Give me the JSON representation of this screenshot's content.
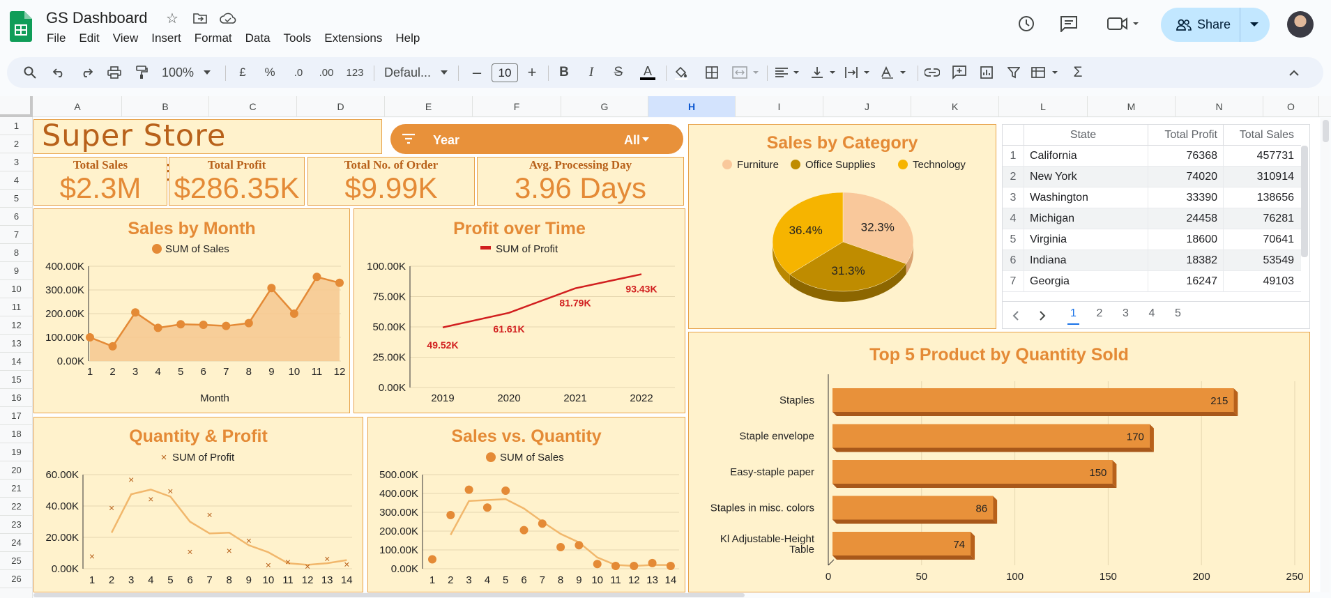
{
  "app": {
    "title": "GS Dashboard",
    "menu": [
      "File",
      "Edit",
      "View",
      "Insert",
      "Format",
      "Data",
      "Tools",
      "Extensions",
      "Help"
    ],
    "share_label": "Share"
  },
  "toolbar": {
    "zoom": "100%",
    "currency": "£",
    "percent": "%",
    "dec_less": ".0",
    "dec_more": ".00",
    "format_123": "123",
    "font": "Defaul...",
    "font_size": "10"
  },
  "columns": [
    "A",
    "B",
    "C",
    "D",
    "E",
    "F",
    "G",
    "H",
    "I",
    "J",
    "K",
    "L",
    "M",
    "N",
    "O"
  ],
  "rows": [
    "1",
    "2",
    "3",
    "4",
    "5",
    "6",
    "7",
    "8",
    "9",
    "10",
    "11",
    "12",
    "13",
    "14",
    "15",
    "16",
    "17",
    "18",
    "19",
    "20",
    "21",
    "22",
    "23",
    "24",
    "25",
    "26"
  ],
  "dashboard": {
    "title": "Super Store Dashboard",
    "filter_label": "Year",
    "filter_value": "All"
  },
  "kpis": [
    {
      "label": "Total Sales",
      "value": "$2.3M"
    },
    {
      "label": "Total Profit",
      "value": "$286.35K"
    },
    {
      "label": "Total No. of Order",
      "value": "$9.99K"
    },
    {
      "label": "Avg. Processing Day",
      "value": "3.96 Days"
    }
  ],
  "chart_data": [
    {
      "type": "area",
      "title": "Sales by Month",
      "legend": "SUM of Sales",
      "xlabel": "Month",
      "x": [
        1,
        2,
        3,
        4,
        5,
        6,
        7,
        8,
        9,
        10,
        11,
        12
      ],
      "values": [
        100000,
        62000,
        205000,
        140000,
        155000,
        153000,
        148000,
        160000,
        308000,
        200000,
        355000,
        330000
      ],
      "yticks": [
        "0.00K",
        "100.00K",
        "200.00K",
        "300.00K",
        "400.00K"
      ],
      "ylim": [
        0,
        400000
      ]
    },
    {
      "type": "line",
      "title": "Profit over Time",
      "legend": "SUM of Profit",
      "x": [
        2019,
        2020,
        2021,
        2022
      ],
      "values": [
        49520,
        61610,
        81790,
        93430
      ],
      "labels": [
        "49.52K",
        "61.61K",
        "81.79K",
        "93.43K"
      ],
      "yticks": [
        "0.00K",
        "25.00K",
        "50.00K",
        "75.00K",
        "100.00K"
      ],
      "ylim": [
        0,
        100000
      ]
    },
    {
      "type": "scatter",
      "title": "Quantity & Profit",
      "legend": "SUM of Profit",
      "x": [
        1,
        2,
        3,
        4,
        5,
        6,
        7,
        8,
        9,
        10,
        11,
        12,
        13,
        14
      ],
      "values": [
        8000,
        39000,
        57000,
        44500,
        49500,
        11000,
        34500,
        11500,
        18000,
        2500,
        4500,
        1500,
        6500,
        3000
      ],
      "trend": [
        null,
        23000,
        47500,
        50500,
        46000,
        30000,
        22500,
        23000,
        15000,
        10500,
        3500,
        2500,
        3500,
        5500
      ],
      "yticks": [
        "0.00K",
        "20.00K",
        "40.00K",
        "60.00K"
      ],
      "ylim": [
        0,
        60000
      ]
    },
    {
      "type": "scatter",
      "title": "Sales vs. Quantity",
      "legend": "SUM of Sales",
      "x": [
        1,
        2,
        3,
        4,
        5,
        6,
        7,
        8,
        9,
        10,
        11,
        12,
        13,
        14
      ],
      "values": [
        50000,
        285000,
        420000,
        325000,
        415000,
        205000,
        240000,
        115000,
        125000,
        25000,
        15000,
        15000,
        30000,
        15000
      ],
      "trend": [
        null,
        180000,
        360000,
        365000,
        370000,
        320000,
        250000,
        185000,
        140000,
        60000,
        20000,
        15000,
        20000,
        20000
      ],
      "yticks": [
        "0.00K",
        "100.00K",
        "200.00K",
        "300.00K",
        "400.00K",
        "500.00K"
      ],
      "ylim": [
        0,
        500000
      ]
    },
    {
      "type": "pie",
      "title": "Sales by Category",
      "legend": [
        "Furniture",
        "Office Supplies",
        "Technology"
      ],
      "values": [
        32.3,
        31.3,
        36.4
      ],
      "labels": [
        "32.3%",
        "31.3%",
        "36.4%"
      ],
      "colors": [
        "#f9c89b",
        "#bf8c00",
        "#f6b400"
      ]
    },
    {
      "type": "bar",
      "title": "Top 5 Product by Quantity Sold",
      "categories": [
        "Staples",
        "Staple envelope",
        "Easy-staple paper",
        "Staples in misc. colors",
        "Kl Adjustable-Height Table"
      ],
      "values": [
        215,
        170,
        150,
        86,
        74
      ],
      "xticks": [
        "0",
        "50",
        "100",
        "150",
        "200",
        "250"
      ],
      "xlim": [
        0,
        250
      ]
    }
  ],
  "state_table": {
    "headers": [
      "State",
      "Total Profit",
      "Total Sales"
    ],
    "rows": [
      [
        "1",
        "California",
        "76368",
        "457731"
      ],
      [
        "2",
        "New York",
        "74020",
        "310914"
      ],
      [
        "3",
        "Washington",
        "33390",
        "138656"
      ],
      [
        "4",
        "Michigan",
        "24458",
        "76281"
      ],
      [
        "5",
        "Virginia",
        "18600",
        "70641"
      ],
      [
        "6",
        "Indiana",
        "18382",
        "53549"
      ],
      [
        "7",
        "Georgia",
        "16247",
        "49103"
      ]
    ],
    "pages": [
      "1",
      "2",
      "3",
      "4",
      "5"
    ]
  },
  "colors": {
    "accent": "#e48a36",
    "card": "#fff2cc",
    "profit_line": "#d11f1f"
  }
}
